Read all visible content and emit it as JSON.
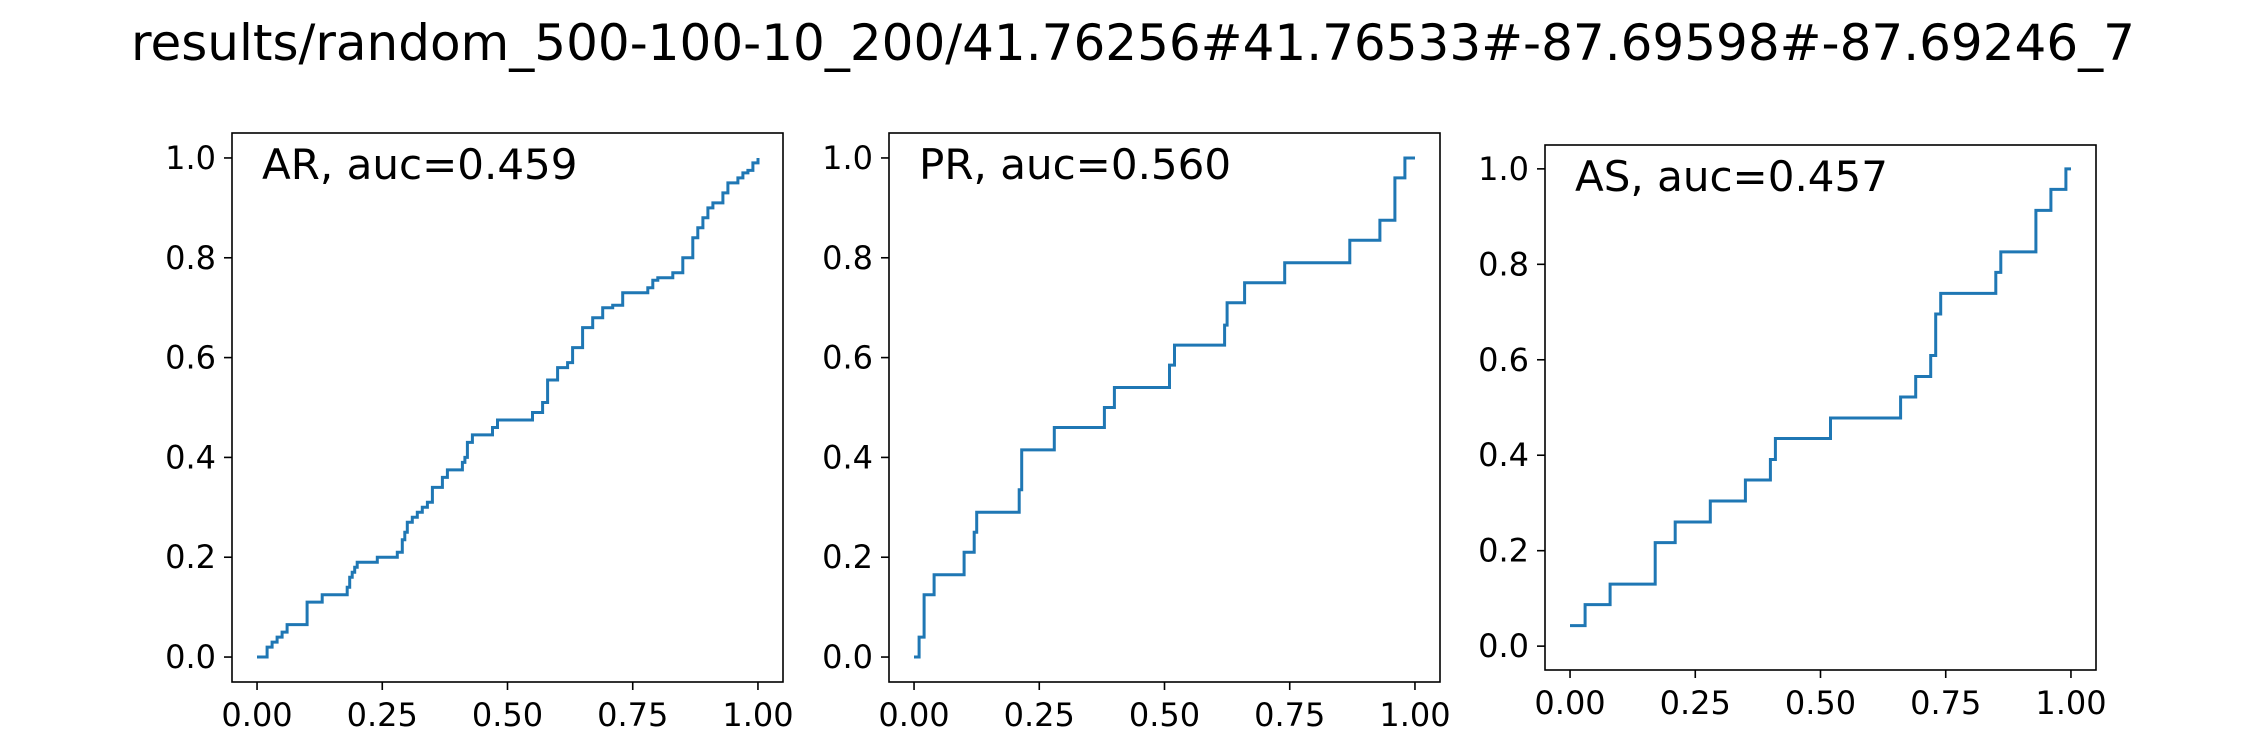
{
  "title": "results/random_500-100-10_200/41.76256#41.76533#-87.69598#-87.69246_7",
  "line_color": "#1f77b4",
  "chart_data": [
    {
      "type": "line",
      "drawstyle": "steps-post",
      "label": "AR, auc=0.459",
      "legend_position": "top-left",
      "xlim": [
        0,
        1
      ],
      "ylim": [
        0,
        1
      ],
      "xticks": [
        "0.00",
        "0.25",
        "0.50",
        "0.75",
        "1.00"
      ],
      "yticks": [
        "0.0",
        "0.2",
        "0.4",
        "0.6",
        "0.8",
        "1.0"
      ],
      "grid": false,
      "x": [
        0.0,
        0.02,
        0.03,
        0.04,
        0.05,
        0.06,
        0.1,
        0.13,
        0.18,
        0.185,
        0.19,
        0.195,
        0.2,
        0.24,
        0.28,
        0.29,
        0.295,
        0.3,
        0.31,
        0.32,
        0.33,
        0.34,
        0.35,
        0.37,
        0.38,
        0.41,
        0.415,
        0.42,
        0.43,
        0.47,
        0.48,
        0.55,
        0.57,
        0.58,
        0.6,
        0.62,
        0.63,
        0.65,
        0.67,
        0.69,
        0.71,
        0.73,
        0.78,
        0.79,
        0.8,
        0.83,
        0.85,
        0.87,
        0.88,
        0.89,
        0.9,
        0.91,
        0.93,
        0.94,
        0.96,
        0.97,
        0.98,
        0.99,
        1.0
      ],
      "y": [
        0.0,
        0.02,
        0.03,
        0.04,
        0.05,
        0.065,
        0.11,
        0.125,
        0.14,
        0.16,
        0.17,
        0.18,
        0.19,
        0.2,
        0.21,
        0.235,
        0.25,
        0.27,
        0.28,
        0.29,
        0.3,
        0.31,
        0.34,
        0.36,
        0.375,
        0.39,
        0.4,
        0.43,
        0.445,
        0.46,
        0.475,
        0.49,
        0.51,
        0.555,
        0.58,
        0.59,
        0.62,
        0.66,
        0.68,
        0.7,
        0.705,
        0.73,
        0.74,
        0.755,
        0.76,
        0.77,
        0.8,
        0.84,
        0.86,
        0.88,
        0.9,
        0.91,
        0.93,
        0.95,
        0.96,
        0.97,
        0.975,
        0.99,
        1.0
      ]
    },
    {
      "type": "line",
      "drawstyle": "steps-post",
      "label": "PR, auc=0.560",
      "legend_position": "top-left",
      "xlim": [
        0,
        1
      ],
      "ylim": [
        0,
        1
      ],
      "xticks": [
        "0.00",
        "0.25",
        "0.50",
        "0.75",
        "1.00"
      ],
      "yticks": [
        "0.0",
        "0.2",
        "0.4",
        "0.6",
        "0.8",
        "1.0"
      ],
      "grid": false,
      "x": [
        0.0,
        0.01,
        0.02,
        0.04,
        0.1,
        0.12,
        0.125,
        0.21,
        0.215,
        0.28,
        0.38,
        0.4,
        0.51,
        0.52,
        0.62,
        0.625,
        0.66,
        0.74,
        0.87,
        0.93,
        0.96,
        0.98,
        1.0
      ],
      "y": [
        0.0,
        0.04,
        0.125,
        0.165,
        0.21,
        0.25,
        0.29,
        0.335,
        0.415,
        0.46,
        0.5,
        0.54,
        0.585,
        0.625,
        0.665,
        0.71,
        0.75,
        0.79,
        0.835,
        0.875,
        0.96,
        1.0,
        1.0
      ]
    },
    {
      "type": "line",
      "drawstyle": "steps-post",
      "label": "AS, auc=0.457",
      "legend_position": "top-left",
      "xlim": [
        0,
        1
      ],
      "ylim": [
        0,
        1
      ],
      "xticks": [
        "0.00",
        "0.25",
        "0.50",
        "0.75",
        "1.00"
      ],
      "yticks": [
        "0.0",
        "0.2",
        "0.4",
        "0.6",
        "0.8",
        "1.0"
      ],
      "grid": false,
      "x": [
        0.0,
        0.03,
        0.08,
        0.17,
        0.21,
        0.28,
        0.35,
        0.4,
        0.41,
        0.52,
        0.66,
        0.69,
        0.72,
        0.73,
        0.74,
        0.85,
        0.86,
        0.93,
        0.96,
        0.99,
        1.0
      ],
      "y": [
        0.043,
        0.087,
        0.13,
        0.217,
        0.26,
        0.304,
        0.348,
        0.391,
        0.435,
        0.478,
        0.522,
        0.565,
        0.609,
        0.696,
        0.739,
        0.783,
        0.826,
        0.913,
        0.957,
        1.0,
        1.0
      ]
    }
  ]
}
